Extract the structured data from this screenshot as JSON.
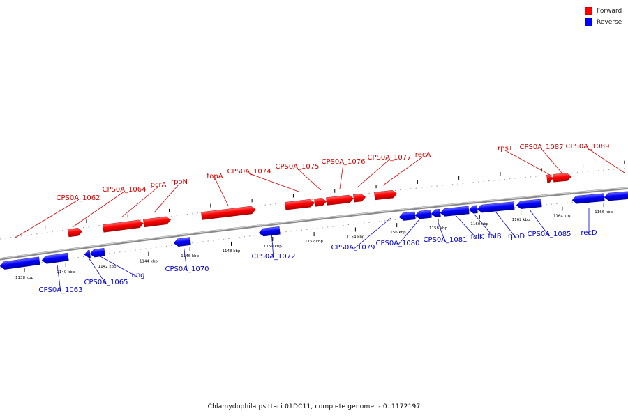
{
  "legend": {
    "forward": {
      "label": "Forward",
      "color": "#ff0000"
    },
    "reverse": {
      "label": "Reverse",
      "color": "#0000ff"
    }
  },
  "caption": "Chlamydophila psittaci 01DC11, complete genome. - 0..1172197",
  "ticks": [
    "1138 kbp",
    "1140 kbp",
    "1142 kbp",
    "1144 kbp",
    "1146 kbp",
    "1148 kbp",
    "1150 kbp",
    "1152 kbp",
    "1154 kbp",
    "1156 kbp",
    "1158 kbp",
    "1160 kbp",
    "1162 kbp",
    "1164 kbp",
    "1166 kbp"
  ],
  "forward_labels": [
    "CPS0A_1062",
    "CPS0A_1064",
    "pcrA",
    "rpoN",
    "topA",
    "CPS0A_1074",
    "CPS0A_1075",
    "CPS0A_1076",
    "CPS0A_1077",
    "recA",
    "rpsT",
    "CPS0A_1087",
    "CPS0A_1089"
  ],
  "reverse_labels": [
    "CPS0A_1063",
    "CPS0A_1065",
    "ung",
    "CPS0A_1070",
    "CPS0A_1072",
    "CPS0A_1079",
    "CPS0A_1080",
    "CPS0A_1081",
    "folK",
    "folB",
    "rpoD",
    "CPS0A_1085",
    "recD"
  ]
}
